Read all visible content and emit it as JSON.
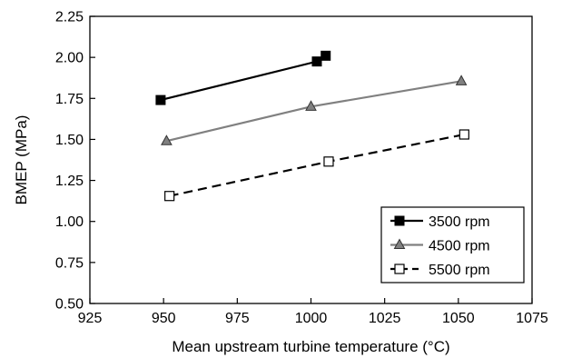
{
  "chart_data": {
    "type": "line",
    "xlabel": "Mean upstream turbine temperature (°C)",
    "ylabel": "BMEP (MPa)",
    "xlim": [
      925,
      1075
    ],
    "ylim": [
      0.5,
      2.25
    ],
    "xticks": [
      925,
      950,
      975,
      1000,
      1025,
      1050,
      1075
    ],
    "xtick_labels": [
      "925",
      "950",
      "975",
      "1000",
      "1025",
      "1050",
      "1075"
    ],
    "yticks": [
      0.5,
      0.75,
      1.0,
      1.25,
      1.5,
      1.75,
      2.0,
      2.25
    ],
    "ytick_labels": [
      "0.50",
      "0.75",
      "1.00",
      "1.25",
      "1.50",
      "1.75",
      "2.00",
      "2.25"
    ],
    "grid": false,
    "legend_position": "bottom-right",
    "series": [
      {
        "name": "3500 rpm",
        "color": "#000000",
        "line_style": "solid",
        "marker": "filled-square",
        "points": [
          [
            949,
            1.74
          ],
          [
            1002,
            1.975
          ],
          [
            1005,
            2.01
          ]
        ]
      },
      {
        "name": "4500 rpm",
        "color": "#808080",
        "line_style": "solid",
        "marker": "gray-triangle",
        "points": [
          [
            951,
            1.49
          ],
          [
            1000,
            1.7
          ],
          [
            1051,
            1.855
          ]
        ]
      },
      {
        "name": "5500 rpm",
        "color": "#000000",
        "line_style": "dashed",
        "marker": "open-square",
        "points": [
          [
            952,
            1.155
          ],
          [
            1006,
            1.365
          ],
          [
            1052,
            1.53
          ]
        ]
      }
    ]
  }
}
